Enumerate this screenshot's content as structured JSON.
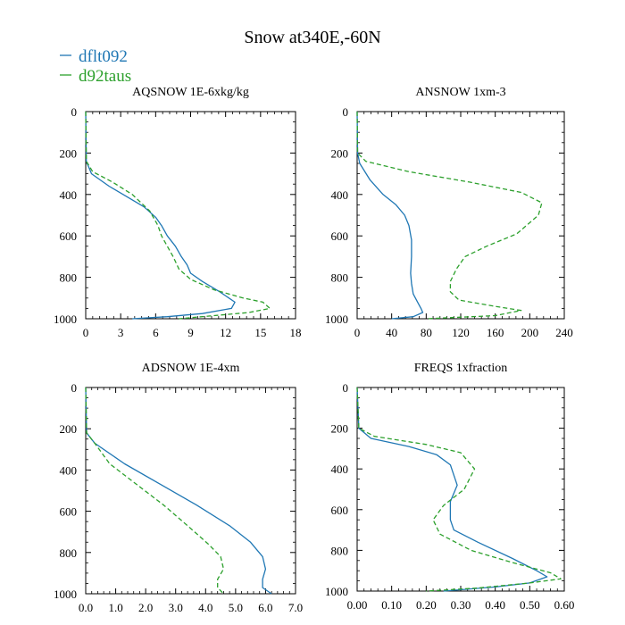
{
  "figure_title": "Snow at340E,-60N",
  "legend": [
    {
      "name": "dflt092",
      "color": "#1f77b4",
      "dash": "solid"
    },
    {
      "name": "d92taus",
      "color": "#2ca02c",
      "dash": "dashed"
    }
  ],
  "chart_data": [
    {
      "type": "line",
      "title": "AQSNOW  1E-6xkg/kg",
      "xlabel": "",
      "ylabel": "",
      "xlim": [
        0,
        18
      ],
      "ylim": [
        1000,
        0
      ],
      "xticks": [
        0,
        3,
        6,
        9,
        12,
        15,
        18
      ],
      "xtick_labels": [
        "0",
        "3",
        "6",
        "9",
        "12",
        "15",
        "18"
      ],
      "yticks": [
        0,
        200,
        400,
        600,
        800,
        1000
      ],
      "ytick_labels": [
        "0",
        "200",
        "400",
        "600",
        "800",
        "1000"
      ],
      "series": [
        {
          "name": "dflt092",
          "x": [
            0,
            0.05,
            0.5,
            2,
            3.5,
            5,
            6,
            6.5,
            7,
            7.7,
            8.2,
            8.7,
            9.0,
            10,
            11.5,
            12.8,
            12.5,
            10,
            7,
            4
          ],
          "y": [
            0,
            240,
            300,
            360,
            410,
            460,
            510,
            550,
            600,
            650,
            700,
            740,
            780,
            820,
            870,
            920,
            950,
            975,
            990,
            1000
          ]
        },
        {
          "name": "d92taus",
          "x": [
            0,
            0.05,
            0.6,
            2.3,
            4,
            5.5,
            6.2,
            6.5,
            7,
            7.5,
            8,
            9,
            11,
            13.5,
            15.2,
            15.8,
            14,
            11,
            8
          ],
          "y": [
            0,
            240,
            290,
            340,
            400,
            480,
            550,
            600,
            650,
            700,
            760,
            810,
            860,
            900,
            920,
            950,
            970,
            985,
            1000
          ]
        }
      ]
    },
    {
      "type": "line",
      "title": "ANSNOW  1xm-3",
      "xlabel": "",
      "ylabel": "",
      "xlim": [
        0,
        240
      ],
      "ylim": [
        1000,
        0
      ],
      "xticks": [
        0,
        40,
        80,
        120,
        160,
        200,
        240
      ],
      "xtick_labels": [
        "0",
        "40",
        "80",
        "120",
        "160",
        "200",
        "240"
      ],
      "yticks": [
        0,
        200,
        400,
        600,
        800,
        1000
      ],
      "ytick_labels": [
        "0",
        "200",
        "400",
        "600",
        "800",
        "1000"
      ],
      "series": [
        {
          "name": "dflt092",
          "x": [
            0,
            0.5,
            3,
            15,
            30,
            45,
            55,
            60,
            63,
            63,
            62,
            63,
            65,
            70,
            74,
            76,
            65,
            40
          ],
          "y": [
            0,
            200,
            250,
            330,
            400,
            450,
            500,
            550,
            620,
            700,
            780,
            830,
            880,
            920,
            950,
            970,
            990,
            1000
          ]
        },
        {
          "name": "d92taus",
          "x": [
            0,
            0.5,
            10,
            60,
            130,
            190,
            214,
            210,
            185,
            150,
            125,
            115,
            108,
            108,
            118,
            160,
            190,
            160,
            80
          ],
          "y": [
            0,
            200,
            240,
            290,
            340,
            390,
            440,
            500,
            590,
            650,
            700,
            760,
            820,
            870,
            910,
            940,
            960,
            985,
            1000
          ]
        }
      ]
    },
    {
      "type": "line",
      "title": "ADSNOW  1E-4xm",
      "xlabel": "",
      "ylabel": "",
      "xlim": [
        0,
        7
      ],
      "ylim": [
        1000,
        0
      ],
      "xticks": [
        0,
        1,
        2,
        3,
        4,
        5,
        6,
        7
      ],
      "xtick_labels": [
        "0.0",
        "1.0",
        "2.0",
        "3.0",
        "4.0",
        "5.0",
        "6.0",
        "7.0"
      ],
      "yticks": [
        0,
        200,
        400,
        600,
        800,
        1000
      ],
      "ytick_labels": [
        "0",
        "200",
        "400",
        "600",
        "800",
        "1000"
      ],
      "series": [
        {
          "name": "dflt092",
          "x": [
            0,
            0.03,
            0.3,
            1.3,
            2.5,
            3.7,
            4.8,
            5.5,
            5.9,
            6.0,
            5.9,
            5.9,
            6.2
          ],
          "y": [
            0,
            220,
            270,
            370,
            470,
            570,
            670,
            750,
            820,
            880,
            930,
            970,
            1000
          ]
        },
        {
          "name": "d92taus",
          "x": [
            0,
            0.03,
            0.3,
            0.8,
            1.7,
            2.6,
            3.4,
            4.1,
            4.5,
            4.6,
            4.4,
            4.4,
            4.6
          ],
          "y": [
            0,
            220,
            270,
            370,
            470,
            570,
            670,
            760,
            820,
            880,
            930,
            970,
            1000
          ]
        }
      ]
    },
    {
      "type": "line",
      "title": "FREQS  1xfraction",
      "xlabel": "",
      "ylabel": "",
      "xlim": [
        0,
        0.6
      ],
      "ylim": [
        1000,
        0
      ],
      "xticks": [
        0,
        0.1,
        0.2,
        0.3,
        0.4,
        0.5,
        0.6
      ],
      "xtick_labels": [
        "0.00",
        "0.10",
        "0.20",
        "0.30",
        "0.40",
        "0.50",
        "0.60"
      ],
      "yticks": [
        0,
        200,
        400,
        600,
        800,
        1000
      ],
      "ytick_labels": [
        "0",
        "200",
        "400",
        "600",
        "800",
        "1000"
      ],
      "series": [
        {
          "name": "dflt092",
          "x": [
            0,
            0.005,
            0.04,
            0.15,
            0.23,
            0.27,
            0.29,
            0.27,
            0.27,
            0.28,
            0.35,
            0.45,
            0.52,
            0.55,
            0.5,
            0.4,
            0.25
          ],
          "y": [
            0,
            200,
            250,
            290,
            330,
            380,
            480,
            560,
            650,
            700,
            760,
            840,
            900,
            930,
            960,
            980,
            1000
          ]
        },
        {
          "name": "d92taus",
          "x": [
            0,
            0.005,
            0.05,
            0.2,
            0.3,
            0.34,
            0.31,
            0.25,
            0.22,
            0.24,
            0.33,
            0.45,
            0.56,
            0.59,
            0.5,
            0.35,
            0.2
          ],
          "y": [
            0,
            200,
            240,
            280,
            320,
            400,
            500,
            580,
            650,
            720,
            800,
            860,
            910,
            940,
            960,
            985,
            1000
          ]
        }
      ]
    }
  ]
}
